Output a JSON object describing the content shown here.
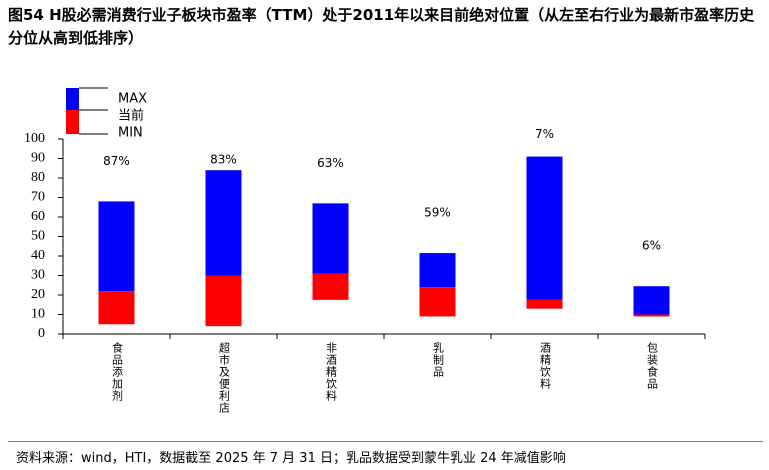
{
  "chart_data": {
    "type": "floating-bar",
    "title": "图54 H股必需消费行业子板块市盈率（TTM）处于2011年以来目前绝对位置（从左至右行业为最新市盈率历史分位从高到低排序）",
    "source": "资料来源：wind，HTI，数据截至 2025 年 7 月 31 日；乳品数据受到蒙牛乳业 24 年减值影响",
    "categories": [
      "食品添加剂",
      "超市及便利店",
      "非酒精饮料",
      "乳制品",
      "酒精饮料",
      "包装食品"
    ],
    "series": [
      {
        "name": "MAX",
        "color": "#0000ff",
        "values": [
          68,
          84,
          67,
          41.5,
          91,
          24.5
        ]
      },
      {
        "name": "当前",
        "color": "#ff0000",
        "values": [
          22,
          30,
          31,
          24,
          17.5,
          10
        ]
      },
      {
        "name": "MIN",
        "values": [
          5,
          4,
          17.5,
          9,
          13,
          9
        ]
      }
    ],
    "percentile": {
      "values": [
        87,
        83,
        63,
        59,
        7,
        6
      ],
      "value_labels": [
        "87%",
        "83%",
        "63%",
        "59%",
        "7%",
        "6%"
      ]
    },
    "ylim": [
      0,
      100
    ],
    "yticks": [
      0,
      10,
      20,
      30,
      40,
      50,
      60,
      70,
      80,
      90,
      100
    ]
  }
}
